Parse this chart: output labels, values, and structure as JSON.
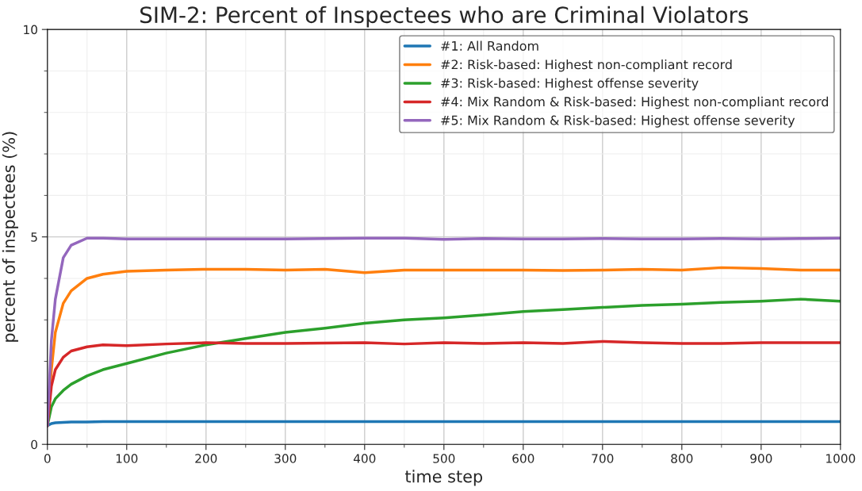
{
  "chart_data": {
    "type": "line",
    "title": "SIM-2: Percent of Inspectees who are Criminal Violators",
    "xlabel": "time step",
    "ylabel": "percent of inspectees (%)",
    "x": [
      0,
      5,
      10,
      20,
      30,
      50,
      70,
      100,
      150,
      200,
      250,
      300,
      350,
      400,
      450,
      500,
      550,
      600,
      650,
      700,
      750,
      800,
      850,
      900,
      950,
      1000
    ],
    "series": [
      {
        "name": "#1: All Random",
        "color": "#1f77b4",
        "values": [
          0.45,
          0.5,
          0.52,
          0.53,
          0.54,
          0.54,
          0.55,
          0.55,
          0.55,
          0.55,
          0.55,
          0.55,
          0.55,
          0.55,
          0.55,
          0.55,
          0.55,
          0.55,
          0.55,
          0.55,
          0.55,
          0.55,
          0.55,
          0.55,
          0.55,
          0.55
        ]
      },
      {
        "name": "#2: Risk-based: Highest non-compliant record",
        "color": "#ff7f0e",
        "values": [
          0.45,
          1.8,
          2.7,
          3.4,
          3.7,
          4.0,
          4.1,
          4.17,
          4.2,
          4.22,
          4.22,
          4.2,
          4.22,
          4.14,
          4.2,
          4.2,
          4.2,
          4.2,
          4.19,
          4.2,
          4.22,
          4.2,
          4.26,
          4.24,
          4.2,
          4.2
        ]
      },
      {
        "name": "#3: Risk-based: Highest offense severity",
        "color": "#2ca02c",
        "values": [
          0.45,
          0.9,
          1.1,
          1.3,
          1.45,
          1.65,
          1.8,
          1.95,
          2.2,
          2.4,
          2.55,
          2.7,
          2.8,
          2.92,
          3.0,
          3.05,
          3.12,
          3.2,
          3.25,
          3.3,
          3.35,
          3.38,
          3.42,
          3.45,
          3.5,
          3.45
        ]
      },
      {
        "name": "#4: Mix Random & Risk-based: Highest non-compliant record",
        "color": "#d62728",
        "values": [
          0.45,
          1.4,
          1.8,
          2.1,
          2.25,
          2.35,
          2.4,
          2.38,
          2.42,
          2.45,
          2.43,
          2.43,
          2.44,
          2.45,
          2.42,
          2.45,
          2.43,
          2.45,
          2.43,
          2.48,
          2.45,
          2.43,
          2.43,
          2.45,
          2.45,
          2.45
        ]
      },
      {
        "name": "#5: Mix Random & Risk-based: Highest offense severity",
        "color": "#9467bd",
        "values": [
          0.45,
          2.5,
          3.5,
          4.5,
          4.8,
          4.97,
          4.97,
          4.95,
          4.95,
          4.95,
          4.95,
          4.95,
          4.96,
          4.97,
          4.97,
          4.94,
          4.96,
          4.95,
          4.95,
          4.96,
          4.95,
          4.95,
          4.96,
          4.95,
          4.96,
          4.97
        ]
      }
    ],
    "xlim": [
      0,
      1000
    ],
    "xticks": [
      0,
      100,
      200,
      300,
      400,
      500,
      600,
      700,
      800,
      900,
      1000
    ],
    "ylim": [
      0,
      10
    ],
    "yticks": [
      0,
      5,
      10
    ],
    "grid": true,
    "legend": "top right",
    "marker": "none",
    "line_style": "solid"
  }
}
